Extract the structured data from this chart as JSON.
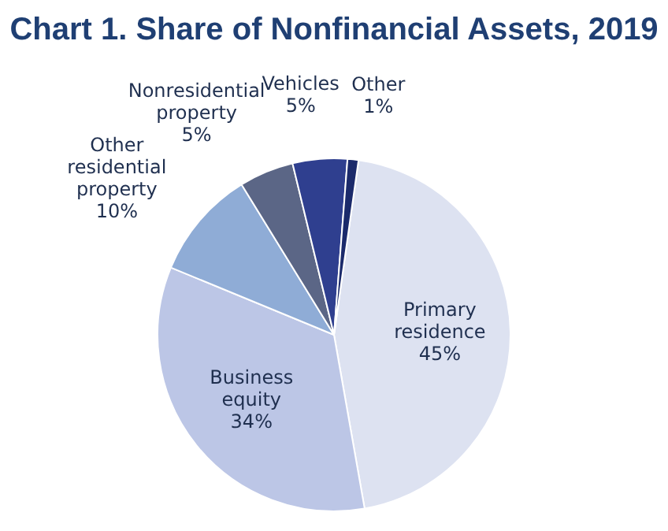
{
  "chart_data": {
    "type": "pie",
    "title": "Chart 1. Share of Nonfinancial Assets, 2019",
    "categories": [
      "Primary residence",
      "Business equity",
      "Other residential property",
      "Nonresidential property",
      "Vehicles",
      "Other"
    ],
    "values": [
      45,
      34,
      10,
      5,
      5,
      1
    ],
    "colors": [
      "#dde2f1",
      "#bcc6e6",
      "#8facd6",
      "#5b6686",
      "#2f3f8f",
      "#1b2a6b"
    ],
    "value_labels": [
      "45%",
      "34%",
      "10%",
      "5%",
      "5%",
      "1%"
    ],
    "legend": false
  }
}
